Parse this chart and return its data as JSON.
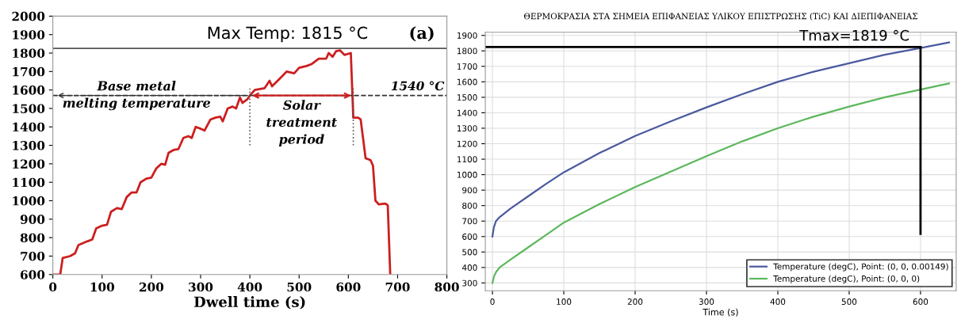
{
  "chart_data": [
    {
      "type": "line",
      "xlabel": "Dwell time (s)",
      "xlim": [
        0,
        800
      ],
      "xticks": [
        0,
        100,
        200,
        300,
        400,
        500,
        600,
        700,
        800
      ],
      "ylim": [
        600,
        2000
      ],
      "yticks": [
        600,
        700,
        800,
        900,
        1000,
        1100,
        1200,
        1300,
        1400,
        1500,
        1600,
        1700,
        1800,
        1900,
        2000
      ],
      "grid": false,
      "legend": false,
      "series": [
        {
          "color": "#cc1f1f",
          "x": [
            0,
            15,
            20,
            35,
            45,
            52,
            70,
            80,
            88,
            100,
            110,
            118,
            130,
            140,
            150,
            160,
            170,
            178,
            190,
            200,
            210,
            220,
            228,
            235,
            245,
            255,
            265,
            275,
            282,
            290,
            300,
            308,
            320,
            330,
            340,
            345,
            355,
            365,
            372,
            380,
            385,
            395,
            400,
            410,
            430,
            440,
            445,
            460,
            475,
            490,
            500,
            515,
            525,
            540,
            555,
            560,
            568,
            575,
            583,
            592,
            605,
            610,
            620,
            625,
            635,
            645,
            650,
            655,
            662,
            675,
            680,
            685
          ],
          "values": [
            600,
            600,
            690,
            700,
            715,
            760,
            780,
            790,
            850,
            865,
            870,
            940,
            960,
            955,
            1020,
            1045,
            1045,
            1100,
            1120,
            1125,
            1175,
            1200,
            1195,
            1260,
            1275,
            1280,
            1340,
            1350,
            1340,
            1400,
            1390,
            1380,
            1440,
            1450,
            1455,
            1430,
            1500,
            1510,
            1500,
            1560,
            1530,
            1550,
            1570,
            1600,
            1610,
            1650,
            1620,
            1660,
            1700,
            1690,
            1720,
            1730,
            1740,
            1770,
            1770,
            1800,
            1780,
            1810,
            1815,
            1790,
            1800,
            1450,
            1450,
            1440,
            1230,
            1220,
            1190,
            1000,
            980,
            985,
            975,
            600
          ]
        }
      ],
      "ref_lines": [
        {
          "axis": "y",
          "value": 1825,
          "color": "#555555",
          "line_style": "solid"
        },
        {
          "axis": "y",
          "value": 1570,
          "label": "1540 °C",
          "color": "#333333",
          "line_style": "dashed"
        },
        {
          "axis": "x",
          "value": 400,
          "color": "#555555",
          "line_style": "dotted"
        },
        {
          "axis": "x",
          "value": 610,
          "color": "#555555",
          "line_style": "dotted"
        }
      ],
      "annotations": [
        "Max Temp: 1815 °C",
        "(a)",
        {
          "text": "Base metal\nmelting temperature",
          "x": 170,
          "y": 1570
        },
        {
          "text": "Solar\ntreatment\nperiod",
          "x": 505,
          "y": 1570
        }
      ]
    },
    {
      "type": "line",
      "title": "ΘΕΡΜΟΚΡΑΣΙΑ ΣΤΑ ΣΗΜΕΙΑ ΕΠΙΦΑΝΕΙΑΣ ΥΛΙΚΟΥ ΕΠΙΣΤΡΩΣΗΣ (TiC) ΚΑΙ ΔΙΕΠΙΦΑΝΕΙΑΣ",
      "xlabel": "Time (s)",
      "xlim": [
        -10,
        650
      ],
      "xticks": [
        0,
        100,
        200,
        300,
        400,
        500,
        600
      ],
      "ylim": [
        250,
        1920
      ],
      "yticks": [
        300,
        400,
        500,
        600,
        700,
        800,
        900,
        1000,
        1100,
        1200,
        1300,
        1400,
        1500,
        1600,
        1700,
        1800,
        1900
      ],
      "grid": true,
      "legend": "bottom right",
      "series": [
        {
          "name": "Temperature (degC), Point: (0, 0, 0.00149)",
          "color": "#4a5a9e",
          "x": [
            0,
            2,
            5,
            10,
            25,
            50,
            75,
            100,
            150,
            200,
            250,
            300,
            350,
            400,
            450,
            500,
            550,
            600,
            640
          ],
          "values": [
            600,
            660,
            700,
            725,
            780,
            860,
            940,
            1015,
            1140,
            1250,
            1345,
            1435,
            1520,
            1600,
            1665,
            1720,
            1775,
            1819,
            1855
          ]
        },
        {
          "name": "Temperature (degC), Point: (0, 0, 0)",
          "color": "#5cb85c",
          "x": [
            0,
            2,
            5,
            10,
            25,
            50,
            75,
            100,
            150,
            200,
            250,
            300,
            350,
            400,
            450,
            500,
            550,
            600,
            640
          ],
          "values": [
            300,
            340,
            370,
            400,
            450,
            530,
            610,
            690,
            810,
            920,
            1020,
            1120,
            1215,
            1300,
            1375,
            1440,
            1500,
            1550,
            1590
          ]
        }
      ],
      "ref_lines": [
        {
          "axis": "y",
          "value": 1825,
          "color": "#000000",
          "line_style": "solid"
        },
        {
          "axis": "x",
          "value": 600,
          "color": "#000000",
          "line_style": "solid"
        }
      ],
      "annotations": [
        {
          "text": "Tmax=1819 °C",
          "x": 600,
          "y": 1819
        }
      ]
    }
  ]
}
